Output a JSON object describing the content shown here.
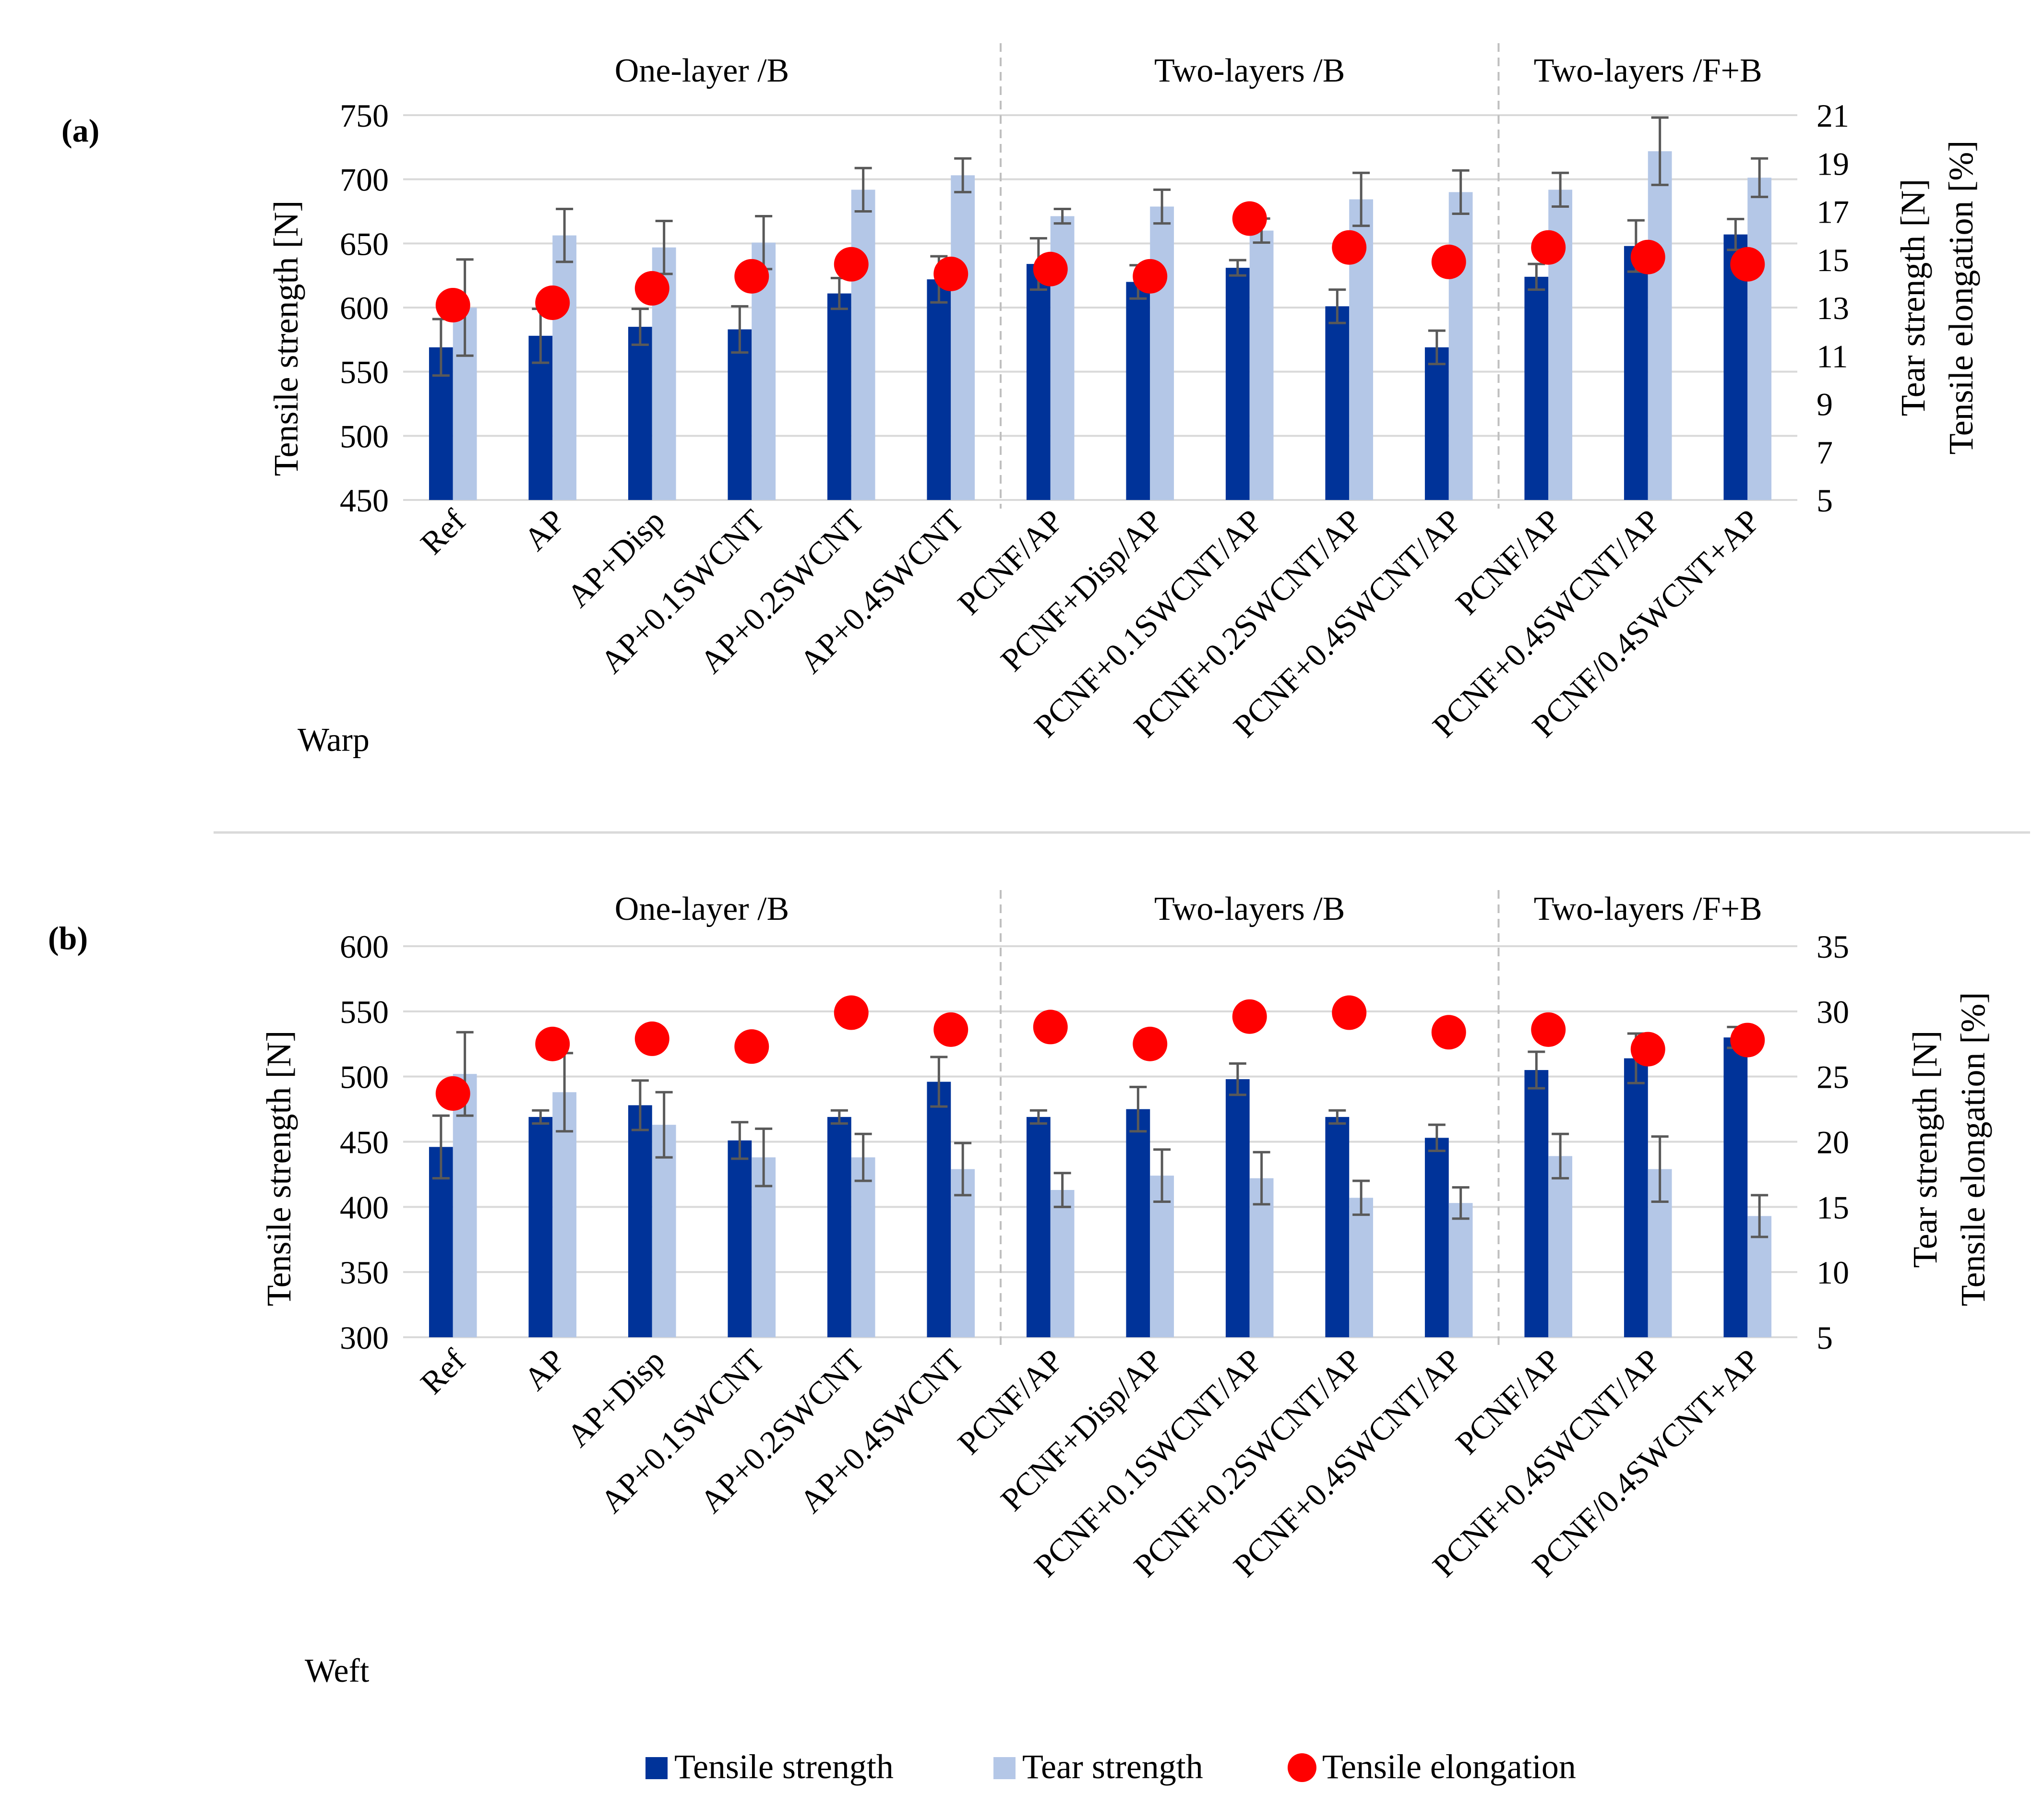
{
  "figure": {
    "legend": {
      "tensile": "Tensile strength",
      "tear": "Tear strength",
      "elong": "Tensile elongation"
    },
    "colors": {
      "tensile": "#003399",
      "tear": "#b4c7e7",
      "elong": "#ff0000",
      "error": "#595959",
      "grid": "#d9d9d9",
      "separator": "#bfbfbf"
    }
  },
  "chart_data": [
    {
      "panel_label": "(a)",
      "type": "bar",
      "direction_label": "Warp",
      "groups": [
        {
          "label": "One-layer /B",
          "start": 0,
          "end": 5
        },
        {
          "label": "Two-layers /B",
          "start": 6,
          "end": 10
        },
        {
          "label": "Two-layers /F+B",
          "start": 11,
          "end": 13
        }
      ],
      "categories": [
        "Ref",
        "AP",
        "AP+Disp",
        "AP+0.1SWCNT",
        "AP+0.2SWCNT",
        "AP+0.4SWCNT",
        "PCNF/AP",
        "PCNF+Disp/AP",
        "PCNF+0.1SWCNT/AP",
        "PCNF+0.2SWCNT/AP",
        "PCNF+0.4SWCNT/AP",
        "PCNF/AP",
        "PCNF+0.4SWCNT/AP",
        "PCNF/0.4SWCNT+AP"
      ],
      "ylabel_left": "Tensile strength [N]",
      "ylabel_right_1": "Tear strength [N]",
      "ylabel_right_2": "Tensile elongation [%]",
      "ylim_left": [
        450,
        750
      ],
      "yticks_left": [
        "450",
        "500",
        "550",
        "600",
        "650",
        "700",
        "750"
      ],
      "ylim_right": [
        5,
        21
      ],
      "yticks_right": [
        "5",
        "7",
        "9",
        "11",
        "13",
        "15",
        "17",
        "19",
        "21"
      ],
      "series": [
        {
          "name": "Tensile strength",
          "axis": "left",
          "kind": "bar",
          "values": [
            569,
            578,
            585,
            583,
            611,
            622,
            634,
            620,
            631,
            601,
            569,
            624,
            648,
            657
          ],
          "errors": [
            22,
            21,
            14,
            18,
            12,
            18,
            20,
            13,
            6,
            13,
            13,
            10,
            20,
            12
          ]
        },
        {
          "name": "Tear strength",
          "axis": "right",
          "kind": "bar",
          "values": [
            13.0,
            16.0,
            15.5,
            15.7,
            17.9,
            18.5,
            16.8,
            17.2,
            16.2,
            17.5,
            17.8,
            17.9,
            19.5,
            18.4
          ],
          "errors": [
            2.0,
            1.1,
            1.1,
            1.1,
            0.9,
            0.7,
            0.3,
            0.7,
            0.5,
            1.1,
            0.9,
            0.7,
            1.4,
            0.8
          ]
        },
        {
          "name": "Tensile elongation",
          "axis": "right",
          "kind": "scatter",
          "values": [
            13.1,
            13.2,
            13.8,
            14.3,
            14.8,
            14.4,
            14.6,
            14.3,
            16.7,
            15.5,
            14.9,
            15.5,
            15.1,
            14.8
          ]
        }
      ]
    },
    {
      "panel_label": "(b)",
      "type": "bar",
      "direction_label": "Weft",
      "groups": [
        {
          "label": "One-layer /B",
          "start": 0,
          "end": 5
        },
        {
          "label": "Two-layers /B",
          "start": 6,
          "end": 10
        },
        {
          "label": "Two-layers /F+B",
          "start": 11,
          "end": 13
        }
      ],
      "categories": [
        "Ref",
        "AP",
        "AP+Disp",
        "AP+0.1SWCNT",
        "AP+0.2SWCNT",
        "AP+0.4SWCNT",
        "PCNF/AP",
        "PCNF+Disp/AP",
        "PCNF+0.1SWCNT/AP",
        "PCNF+0.2SWCNT/AP",
        "PCNF+0.4SWCNT/AP",
        "PCNF/AP",
        "PCNF+0.4SWCNT/AP",
        "PCNF/0.4SWCNT+AP"
      ],
      "ylabel_left": "Tensile strength [N]",
      "ylabel_right_1": "Tear strength [N]",
      "ylabel_right_2": "Tensile elongation [%]",
      "ylim_left": [
        300,
        600
      ],
      "yticks_left": [
        "300",
        "350",
        "400",
        "450",
        "500",
        "550",
        "600"
      ],
      "ylim_right": [
        5,
        35
      ],
      "yticks_right": [
        "5",
        "10",
        "15",
        "20",
        "25",
        "30",
        "35"
      ],
      "series": [
        {
          "name": "Tensile strength",
          "axis": "left",
          "kind": "bar",
          "values": [
            446,
            469,
            478,
            451,
            469,
            496,
            469,
            475,
            498,
            469,
            453,
            505,
            514,
            530
          ],
          "errors": [
            24,
            5,
            19,
            14,
            5,
            19,
            5,
            17,
            12,
            5,
            10,
            14,
            19,
            8
          ]
        },
        {
          "name": "Tear strength",
          "axis": "right",
          "kind": "bar",
          "values": [
            25.2,
            23.8,
            21.3,
            18.8,
            18.8,
            17.9,
            16.3,
            17.4,
            17.2,
            15.7,
            15.3,
            18.9,
            17.9,
            14.3
          ],
          "errors": [
            3.2,
            3.0,
            2.5,
            2.2,
            1.8,
            2.0,
            1.3,
            2.0,
            2.0,
            1.3,
            1.2,
            1.7,
            2.5,
            1.6
          ]
        },
        {
          "name": "Tensile elongation",
          "axis": "right",
          "kind": "scatter",
          "values": [
            23.7,
            27.5,
            27.9,
            27.3,
            29.9,
            28.6,
            28.8,
            27.5,
            29.6,
            29.9,
            28.4,
            28.6,
            27.1,
            27.8
          ]
        }
      ]
    }
  ]
}
